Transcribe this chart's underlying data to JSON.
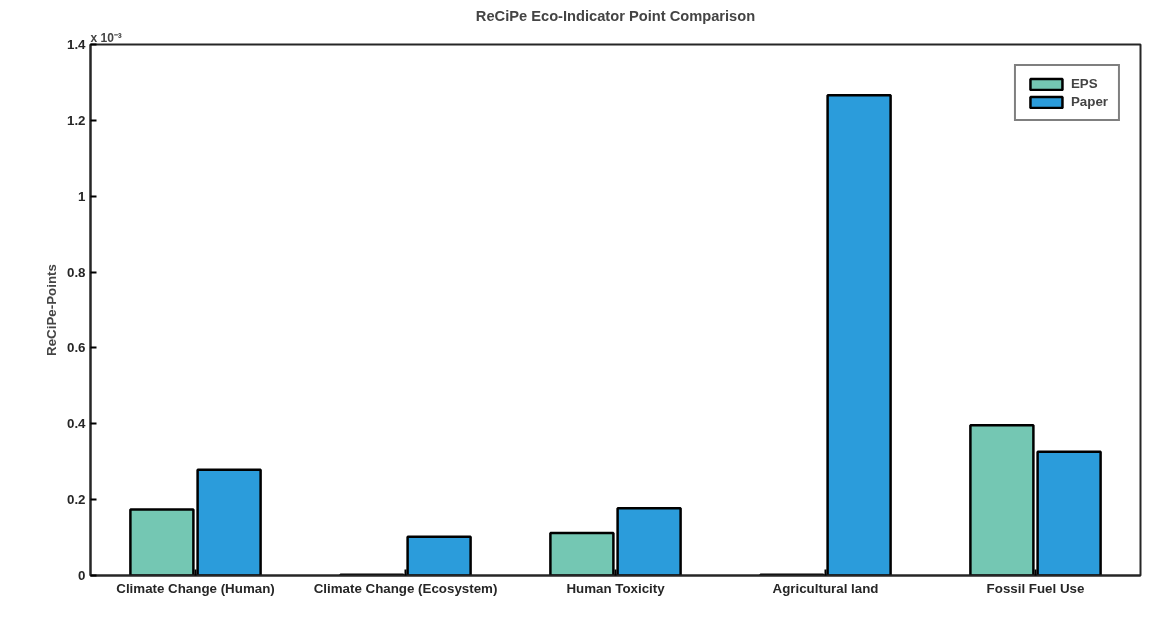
{
  "chart_data": {
    "type": "bar",
    "title": "ReCiPe Eco-Indicator Point Comparison",
    "ylabel": "ReCiPe-Points",
    "categories": [
      "Climate Change (Human)",
      "Climate Change (Ecosystem)",
      "Human Toxicity",
      "Agricultural land",
      "Fossil Fuel Use"
    ],
    "series": [
      {
        "name": "EPS",
        "color": "#74c7b3",
        "values": [
          0.174,
          0.002,
          0.112,
          0.002,
          0.396
        ]
      },
      {
        "name": "Paper",
        "color": "#2b9cdb",
        "values": [
          0.279,
          0.102,
          0.177,
          1.266,
          0.326
        ]
      }
    ],
    "ylim": [
      0,
      1.4
    ],
    "yticks": [
      0,
      0.2,
      0.4,
      0.6,
      0.8,
      1,
      1.2,
      1.4
    ],
    "annotations": [
      "x 10⁻³"
    ],
    "legend": "top right",
    "grid": false
  }
}
